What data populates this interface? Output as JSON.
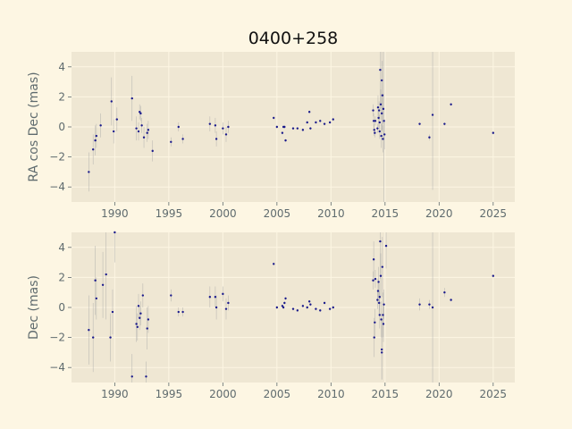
{
  "chart_data": {
    "type": "scatter",
    "title": "0400+258",
    "colors": {
      "background": "#fdf6e3",
      "panel": "#efe7d3",
      "grid": "#fdf6e3",
      "points": "#1a1a8c",
      "errorbars": "#a7a7a7",
      "text": "#5f6b6e"
    },
    "xlim": [
      1986,
      2027
    ],
    "xticks": [
      1990,
      1995,
      2000,
      2005,
      2010,
      2015,
      2020,
      2025
    ],
    "xtick_labels": [
      "1990",
      "1995",
      "2000",
      "2005",
      "2010",
      "2015",
      "2020",
      "2025"
    ],
    "grid": true,
    "panels": [
      {
        "ylabel": "RA cos Dec (mas)",
        "ylim": [
          -5,
          5
        ],
        "yticks": [
          -4,
          -2,
          0,
          2,
          4
        ],
        "ytick_labels": [
          "−4",
          "−2",
          "0",
          "2",
          "4"
        ],
        "points": [
          {
            "x": 1987.6,
            "y": -3.0,
            "err": 1.3
          },
          {
            "x": 1988.0,
            "y": -1.5,
            "err": 1.0
          },
          {
            "x": 1988.2,
            "y": -0.9,
            "err": 1.0
          },
          {
            "x": 1988.3,
            "y": -0.6,
            "err": 0.8
          },
          {
            "x": 1988.7,
            "y": 0.1,
            "err": 0.8
          },
          {
            "x": 1989.7,
            "y": 1.7,
            "err": 1.6
          },
          {
            "x": 1989.9,
            "y": -0.3,
            "err": 0.8
          },
          {
            "x": 1990.2,
            "y": 0.5,
            "err": 0.8
          },
          {
            "x": 1991.6,
            "y": 1.9,
            "err": 1.5
          },
          {
            "x": 1992.0,
            "y": -0.1,
            "err": 0.8
          },
          {
            "x": 1992.2,
            "y": -0.3,
            "err": 0.6
          },
          {
            "x": 1992.3,
            "y": 1.0,
            "err": 0.5
          },
          {
            "x": 1992.4,
            "y": 0.9,
            "err": 0.5
          },
          {
            "x": 1992.5,
            "y": 0.1,
            "err": 0.5
          },
          {
            "x": 1992.7,
            "y": -0.7,
            "err": 0.7
          },
          {
            "x": 1993.0,
            "y": -0.4,
            "err": 0.6
          },
          {
            "x": 1993.1,
            "y": -0.2,
            "err": 0.6
          },
          {
            "x": 1993.5,
            "y": -1.6,
            "err": 0.7
          },
          {
            "x": 1995.2,
            "y": -1.0,
            "err": 0.3
          },
          {
            "x": 1995.9,
            "y": 0.0,
            "err": 0.3
          },
          {
            "x": 1996.3,
            "y": -0.8,
            "err": 0.3
          },
          {
            "x": 1998.8,
            "y": 0.2,
            "err": 0.5
          },
          {
            "x": 1999.3,
            "y": 0.1,
            "err": 0.5
          },
          {
            "x": 1999.4,
            "y": -0.8,
            "err": 0.5
          },
          {
            "x": 2000.0,
            "y": -0.1,
            "err": 0.4
          },
          {
            "x": 2000.3,
            "y": -0.5,
            "err": 0.5
          },
          {
            "x": 2000.5,
            "y": 0.0,
            "err": 0.4
          },
          {
            "x": 2004.7,
            "y": 0.6,
            "err": 0.1
          },
          {
            "x": 2005.0,
            "y": 0.0,
            "err": 0.1
          },
          {
            "x": 2005.5,
            "y": -0.4,
            "err": 0.1
          },
          {
            "x": 2005.6,
            "y": 0.0,
            "err": 0.1
          },
          {
            "x": 2005.7,
            "y": 0.0,
            "err": 0.1
          },
          {
            "x": 2005.8,
            "y": -0.9,
            "err": 0.1
          },
          {
            "x": 2006.5,
            "y": -0.1,
            "err": 0.1
          },
          {
            "x": 2006.9,
            "y": -0.1,
            "err": 0.1
          },
          {
            "x": 2007.4,
            "y": -0.2,
            "err": 0.1
          },
          {
            "x": 2007.8,
            "y": 0.3,
            "err": 0.1
          },
          {
            "x": 2008.0,
            "y": 1.0,
            "err": 0.1
          },
          {
            "x": 2008.1,
            "y": -0.1,
            "err": 0.1
          },
          {
            "x": 2008.6,
            "y": 0.3,
            "err": 0.1
          },
          {
            "x": 2009.0,
            "y": 0.4,
            "err": 0.1
          },
          {
            "x": 2009.4,
            "y": 0.2,
            "err": 0.1
          },
          {
            "x": 2009.9,
            "y": 0.3,
            "err": 0.1
          },
          {
            "x": 2010.2,
            "y": 0.5,
            "err": 0.1
          },
          {
            "x": 2013.9,
            "y": 1.1,
            "err": 0.4
          },
          {
            "x": 2013.95,
            "y": 0.4,
            "err": 0.5
          },
          {
            "x": 2014.0,
            "y": -0.2,
            "err": 0.4
          },
          {
            "x": 2014.05,
            "y": -0.4,
            "err": 0.3
          },
          {
            "x": 2014.1,
            "y": 0.4,
            "err": 0.3
          },
          {
            "x": 2014.3,
            "y": -0.1,
            "err": 0.3
          },
          {
            "x": 2014.35,
            "y": 1.3,
            "err": 0.8
          },
          {
            "x": 2014.4,
            "y": 0.6,
            "err": 0.6
          },
          {
            "x": 2014.45,
            "y": 1.1,
            "err": 0.6
          },
          {
            "x": 2014.5,
            "y": 0.3,
            "err": 0.5
          },
          {
            "x": 2014.5,
            "y": -0.3,
            "err": 0.5
          },
          {
            "x": 2014.55,
            "y": 3.8,
            "err": 2.6
          },
          {
            "x": 2014.6,
            "y": 1.5,
            "err": 1.0
          },
          {
            "x": 2014.65,
            "y": -0.6,
            "err": 0.8
          },
          {
            "x": 2014.7,
            "y": 3.1,
            "err": 2.0
          },
          {
            "x": 2014.7,
            "y": 0.9,
            "err": 1.2
          },
          {
            "x": 2014.75,
            "y": 2.1,
            "err": 2.3
          },
          {
            "x": 2014.8,
            "y": -0.8,
            "err": 0.9
          },
          {
            "x": 2014.85,
            "y": 1.2,
            "err": 1.0
          },
          {
            "x": 2014.9,
            "y": 0.4,
            "err": 5.5
          },
          {
            "x": 2014.95,
            "y": -0.5,
            "err": 1.0
          },
          {
            "x": 2018.2,
            "y": 0.2,
            "err": 0.1
          },
          {
            "x": 2019.1,
            "y": -0.7,
            "err": 0.2
          },
          {
            "x": 2019.4,
            "y": 0.8,
            "err": 5.0
          },
          {
            "x": 2020.5,
            "y": 0.2,
            "err": 0.1
          },
          {
            "x": 2021.1,
            "y": 1.5,
            "err": 0.1
          },
          {
            "x": 2025.0,
            "y": -0.4,
            "err": 0.1
          }
        ]
      },
      {
        "ylabel": "Dec (mas)",
        "ylim": [
          -5,
          5
        ],
        "yticks": [
          -4,
          -2,
          0,
          2,
          4
        ],
        "ytick_labels": [
          "−4",
          "−2",
          "0",
          "2",
          "4"
        ],
        "points": [
          {
            "x": 1987.6,
            "y": -1.5,
            "err": 2.3
          },
          {
            "x": 1988.0,
            "y": -2.0,
            "err": 2.3
          },
          {
            "x": 1988.2,
            "y": 1.8,
            "err": 2.3
          },
          {
            "x": 1988.3,
            "y": 0.6,
            "err": 1.4
          },
          {
            "x": 1988.9,
            "y": 1.5,
            "err": 2.2
          },
          {
            "x": 1989.2,
            "y": 2.2,
            "err": 3.0
          },
          {
            "x": 1989.6,
            "y": -2.0,
            "err": 1.6
          },
          {
            "x": 1989.8,
            "y": -0.3,
            "err": 1.5
          },
          {
            "x": 1990.0,
            "y": 5.0,
            "err": 2.0
          },
          {
            "x": 1991.6,
            "y": -4.6,
            "err": 1.5
          },
          {
            "x": 1992.0,
            "y": -1.1,
            "err": 1.2
          },
          {
            "x": 1992.1,
            "y": -1.3,
            "err": 0.9
          },
          {
            "x": 1992.2,
            "y": 0.1,
            "err": 0.8
          },
          {
            "x": 1992.3,
            "y": -0.7,
            "err": 0.8
          },
          {
            "x": 1992.4,
            "y": -0.4,
            "err": 0.8
          },
          {
            "x": 1992.6,
            "y": 0.8,
            "err": 0.8
          },
          {
            "x": 1992.9,
            "y": -4.6,
            "err": 1.0
          },
          {
            "x": 1993.0,
            "y": -1.4,
            "err": 1.4
          },
          {
            "x": 1993.1,
            "y": -0.8,
            "err": 0.9
          },
          {
            "x": 1995.2,
            "y": 0.8,
            "err": 0.4
          },
          {
            "x": 1995.9,
            "y": -0.3,
            "err": 0.3
          },
          {
            "x": 1996.3,
            "y": -0.3,
            "err": 0.3
          },
          {
            "x": 1998.8,
            "y": 0.7,
            "err": 0.7
          },
          {
            "x": 1999.3,
            "y": 0.7,
            "err": 0.7
          },
          {
            "x": 1999.4,
            "y": 0.0,
            "err": 0.8
          },
          {
            "x": 2000.0,
            "y": 0.9,
            "err": 0.5
          },
          {
            "x": 2000.3,
            "y": -0.1,
            "err": 0.7
          },
          {
            "x": 2000.5,
            "y": 0.3,
            "err": 0.5
          },
          {
            "x": 2004.7,
            "y": 2.9,
            "err": 0.1
          },
          {
            "x": 2005.0,
            "y": 0.0,
            "err": 0.1
          },
          {
            "x": 2005.5,
            "y": 0.1,
            "err": 0.1
          },
          {
            "x": 2005.6,
            "y": 0.0,
            "err": 0.1
          },
          {
            "x": 2005.7,
            "y": 0.3,
            "err": 0.1
          },
          {
            "x": 2005.8,
            "y": 0.6,
            "err": 0.1
          },
          {
            "x": 2006.5,
            "y": -0.1,
            "err": 0.1
          },
          {
            "x": 2006.9,
            "y": -0.2,
            "err": 0.1
          },
          {
            "x": 2007.4,
            "y": 0.1,
            "err": 0.1
          },
          {
            "x": 2007.8,
            "y": 0.0,
            "err": 0.1
          },
          {
            "x": 2008.0,
            "y": 0.4,
            "err": 0.1
          },
          {
            "x": 2008.1,
            "y": 0.2,
            "err": 0.1
          },
          {
            "x": 2008.6,
            "y": -0.1,
            "err": 0.1
          },
          {
            "x": 2009.0,
            "y": -0.2,
            "err": 0.1
          },
          {
            "x": 2009.4,
            "y": 0.3,
            "err": 0.1
          },
          {
            "x": 2009.9,
            "y": -0.1,
            "err": 0.1
          },
          {
            "x": 2010.2,
            "y": 0.0,
            "err": 0.1
          },
          {
            "x": 2013.9,
            "y": 1.8,
            "err": 0.6
          },
          {
            "x": 2013.95,
            "y": 3.2,
            "err": 1.2
          },
          {
            "x": 2014.0,
            "y": -2.0,
            "err": 1.3
          },
          {
            "x": 2014.05,
            "y": -1.0,
            "err": 0.9
          },
          {
            "x": 2014.1,
            "y": 1.9,
            "err": 0.6
          },
          {
            "x": 2014.3,
            "y": 0.5,
            "err": 0.6
          },
          {
            "x": 2014.35,
            "y": 1.1,
            "err": 0.8
          },
          {
            "x": 2014.4,
            "y": 1.7,
            "err": 1.0
          },
          {
            "x": 2014.45,
            "y": 0.3,
            "err": 0.8
          },
          {
            "x": 2014.5,
            "y": -0.5,
            "err": 0.9
          },
          {
            "x": 2014.5,
            "y": 0.7,
            "err": 0.9
          },
          {
            "x": 2014.55,
            "y": 4.4,
            "err": 2.5
          },
          {
            "x": 2014.6,
            "y": 2.1,
            "err": 1.5
          },
          {
            "x": 2014.65,
            "y": -0.8,
            "err": 1.2
          },
          {
            "x": 2014.7,
            "y": -2.8,
            "err": 2.0
          },
          {
            "x": 2014.7,
            "y": -3.0,
            "err": 1.8
          },
          {
            "x": 2014.75,
            "y": 2.7,
            "err": 2.0
          },
          {
            "x": 2014.8,
            "y": -0.5,
            "err": 1.5
          },
          {
            "x": 2014.85,
            "y": -1.1,
            "err": 1.2
          },
          {
            "x": 2014.9,
            "y": 0.2,
            "err": 1.0
          },
          {
            "x": 2015.1,
            "y": 4.1,
            "err": 1.5
          },
          {
            "x": 2018.2,
            "y": 0.2,
            "err": 0.4
          },
          {
            "x": 2019.1,
            "y": 0.2,
            "err": 0.3
          },
          {
            "x": 2019.4,
            "y": 0.0,
            "err": 5.0
          },
          {
            "x": 2020.5,
            "y": 1.0,
            "err": 0.3
          },
          {
            "x": 2021.1,
            "y": 0.5,
            "err": 0.1
          },
          {
            "x": 2025.0,
            "y": 2.1,
            "err": 0.1
          }
        ]
      }
    ]
  }
}
